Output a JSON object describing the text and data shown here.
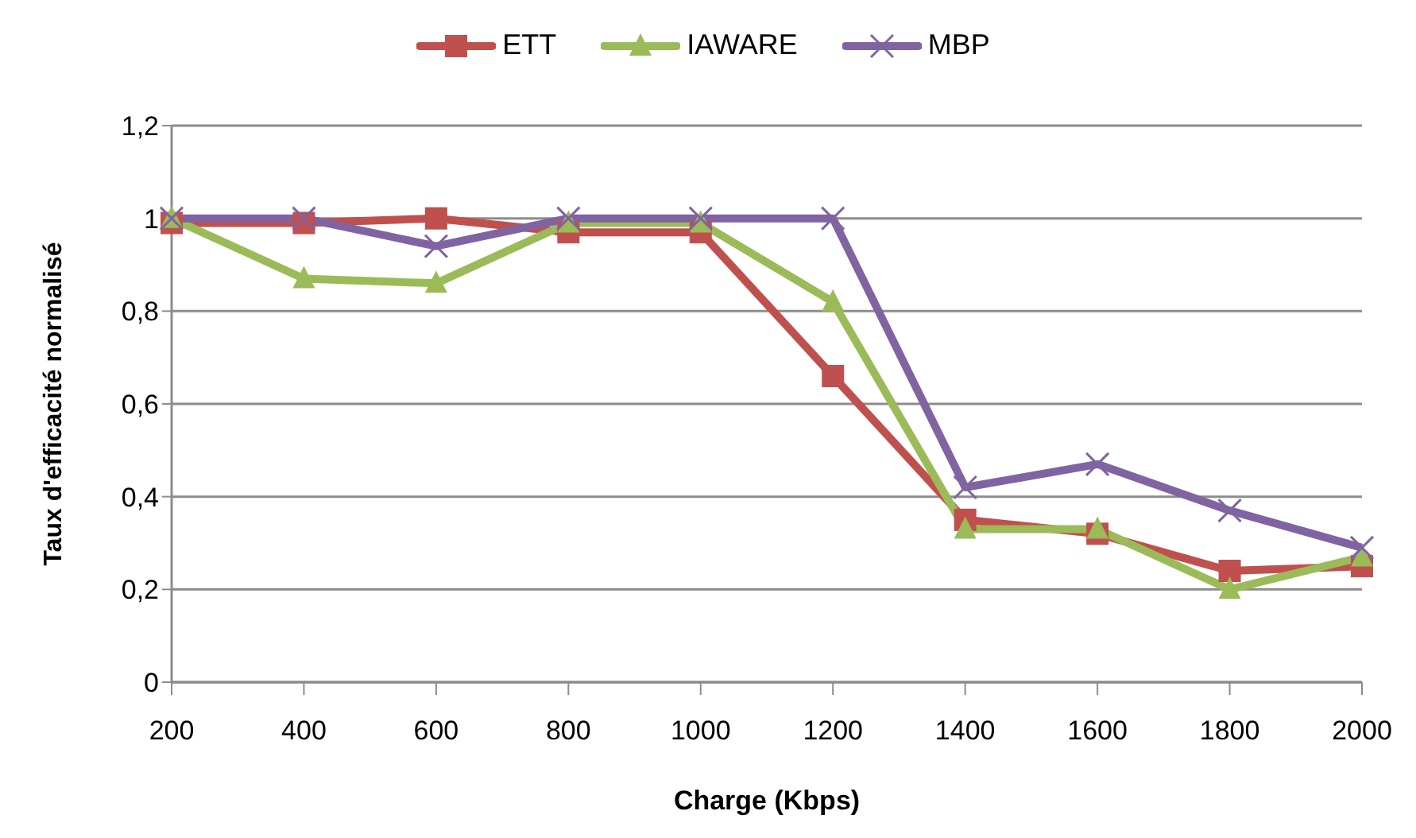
{
  "chart_data": {
    "type": "line",
    "xlabel": "Charge (Kbps)",
    "ylabel": "Taux d'efficacité  normalisé",
    "categories": [
      "200",
      "400",
      "600",
      "800",
      "1000",
      "1200",
      "1400",
      "1600",
      "1800",
      "2000"
    ],
    "series": [
      {
        "name": "ETT",
        "color": "#c0504d",
        "marker": "square",
        "values": [
          0.99,
          0.99,
          1.0,
          0.97,
          0.97,
          0.66,
          0.35,
          0.32,
          0.24,
          0.25
        ]
      },
      {
        "name": "IAWARE",
        "color": "#9bbb59",
        "marker": "triangle",
        "values": [
          1.0,
          0.87,
          0.86,
          0.99,
          0.99,
          0.82,
          0.33,
          0.33,
          0.2,
          0.27
        ]
      },
      {
        "name": "MBP",
        "color": "#8064a2",
        "marker": "cross",
        "values": [
          1.0,
          1.0,
          0.94,
          1.0,
          1.0,
          1.0,
          0.42,
          0.47,
          0.37,
          0.29
        ]
      }
    ],
    "ylim": [
      0,
      1.2
    ],
    "yticks": [
      0,
      {
        "value": 0.2,
        "label": "0,2"
      },
      {
        "value": 0.4,
        "label": "0,4"
      },
      {
        "value": 0.6,
        "label": "0,6"
      },
      {
        "value": 0.8,
        "label": "0,8"
      },
      1,
      {
        "value": 1.2,
        "label": "1,2"
      }
    ],
    "grid": "y",
    "legend": "top",
    "line_style": "solid"
  }
}
